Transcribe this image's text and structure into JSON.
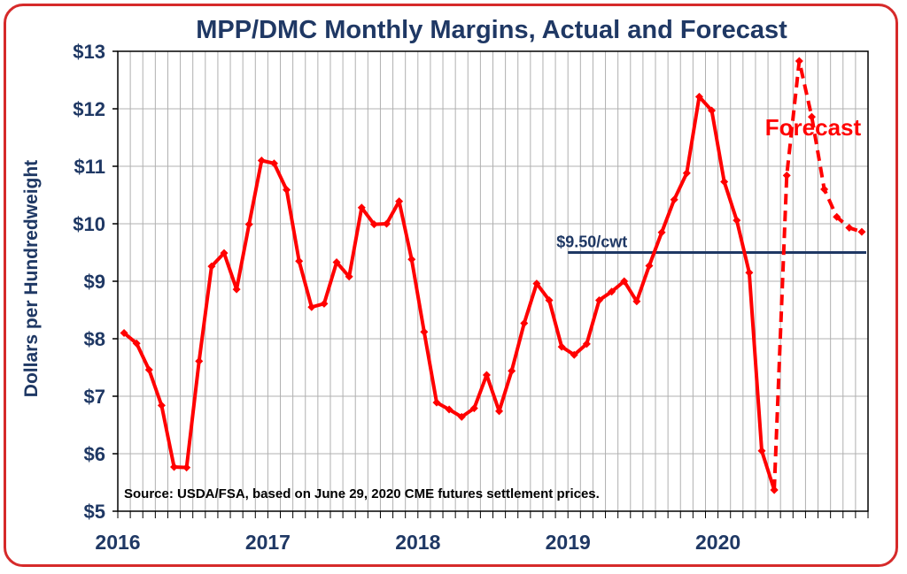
{
  "chart_data": {
    "type": "line",
    "title": "MPP/DMC Monthly Margins, Actual and Forecast",
    "ylabel": "Dollars per Hundredweight",
    "xlabel": "",
    "ylim": [
      5,
      13
    ],
    "yticks": [
      "$5",
      "$6",
      "$7",
      "$8",
      "$9",
      "$10",
      "$11",
      "$12",
      "$13"
    ],
    "xtick_labels": [
      "2016",
      "2017",
      "2018",
      "2019",
      "2020"
    ],
    "x_start": "2016-01",
    "grid": true,
    "colors": {
      "series": "#ff0000",
      "axis_text": "#1f3864",
      "reference": "#1f3864",
      "frame": "#d62a2a"
    },
    "series": [
      {
        "style": "solid",
        "values": [
          8.1,
          7.92,
          7.46,
          6.84,
          5.77,
          5.76,
          7.61,
          9.26,
          9.49,
          8.86,
          9.99,
          11.1,
          11.05,
          10.59,
          9.35,
          8.55,
          8.61,
          9.33,
          9.08,
          10.28,
          9.99,
          10.0,
          10.39,
          9.38,
          8.12,
          6.89,
          6.77,
          6.64,
          6.79,
          7.37,
          6.74,
          7.44,
          8.27,
          8.96,
          8.67,
          7.86,
          7.72,
          7.91,
          8.67,
          8.82,
          9.0,
          8.65,
          9.27,
          9.85,
          10.42,
          10.88,
          12.21,
          11.97,
          10.73,
          10.06,
          9.15,
          6.05,
          5.37
        ]
      },
      {
        "style": "dashed",
        "label": "Forecast",
        "values": [
          5.37,
          10.84,
          12.83,
          11.86,
          10.6,
          10.12,
          9.93,
          9.86
        ]
      }
    ],
    "reference_line": {
      "value": 9.5,
      "label": "$9.50/cwt",
      "x_from": "2019-01",
      "x_to": "2020-12"
    },
    "source_note": "Source:  USDA/FSA, based on June 29, 2020 CME futures settlement prices."
  }
}
